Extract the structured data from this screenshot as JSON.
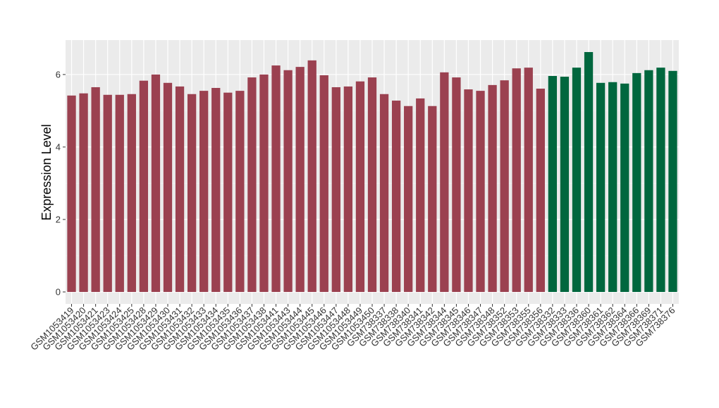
{
  "chart_data": {
    "type": "bar",
    "y_label": "Expression Level",
    "categories": [
      "GSM1053419",
      "GSM1053420",
      "GSM1053421",
      "GSM1053423",
      "GSM1053424",
      "GSM1053425",
      "GSM1053428",
      "GSM1053429",
      "GSM1053430",
      "GSM1053431",
      "GSM1053432",
      "GSM1053433",
      "GSM1053434",
      "GSM1053435",
      "GSM1053436",
      "GSM1053437",
      "GSM1053438",
      "GSM1053441",
      "GSM1053443",
      "GSM1053444",
      "GSM1053445",
      "GSM1053446",
      "GSM1053447",
      "GSM1053448",
      "GSM1053449",
      "GSM1053450",
      "GSM738337",
      "GSM738338",
      "GSM738340",
      "GSM738341",
      "GSM738342",
      "GSM738344",
      "GSM738345",
      "GSM738346",
      "GSM738347",
      "GSM738348",
      "GSM738352",
      "GSM738353",
      "GSM738355",
      "GSM738356",
      "GSM738332",
      "GSM738333",
      "GSM738336",
      "GSM738360",
      "GSM738361",
      "GSM738362",
      "GSM738364",
      "GSM738366",
      "GSM738369",
      "GSM738371",
      "GSM738376"
    ],
    "values": [
      5.42,
      5.48,
      5.65,
      5.44,
      5.44,
      5.46,
      5.83,
      6.0,
      5.77,
      5.67,
      5.46,
      5.55,
      5.63,
      5.5,
      5.55,
      5.92,
      6.0,
      6.25,
      6.12,
      6.21,
      6.39,
      5.98,
      5.65,
      5.67,
      5.81,
      5.92,
      5.46,
      5.28,
      5.13,
      5.34,
      5.13,
      6.06,
      5.92,
      5.59,
      5.55,
      5.71,
      5.84,
      6.17,
      6.19,
      5.61,
      5.96,
      5.94,
      6.19,
      6.62,
      5.77,
      5.79,
      5.75,
      6.04,
      6.12,
      6.19,
      6.1
    ],
    "colors": [
      "#9b4150",
      "#9b4150",
      "#9b4150",
      "#9b4150",
      "#9b4150",
      "#9b4150",
      "#9b4150",
      "#9b4150",
      "#9b4150",
      "#9b4150",
      "#9b4150",
      "#9b4150",
      "#9b4150",
      "#9b4150",
      "#9b4150",
      "#9b4150",
      "#9b4150",
      "#9b4150",
      "#9b4150",
      "#9b4150",
      "#9b4150",
      "#9b4150",
      "#9b4150",
      "#9b4150",
      "#9b4150",
      "#9b4150",
      "#9b4150",
      "#9b4150",
      "#9b4150",
      "#9b4150",
      "#9b4150",
      "#9b4150",
      "#9b4150",
      "#9b4150",
      "#9b4150",
      "#9b4150",
      "#9b4150",
      "#9b4150",
      "#9b4150",
      "#9b4150",
      "#00673e",
      "#00673e",
      "#00673e",
      "#00673e",
      "#00673e",
      "#00673e",
      "#00673e",
      "#00673e",
      "#00673e",
      "#00673e",
      "#00673e"
    ],
    "ylim": [
      -0.33,
      6.95
    ],
    "yticks": [
      0,
      2,
      4,
      6
    ],
    "grid": true
  }
}
